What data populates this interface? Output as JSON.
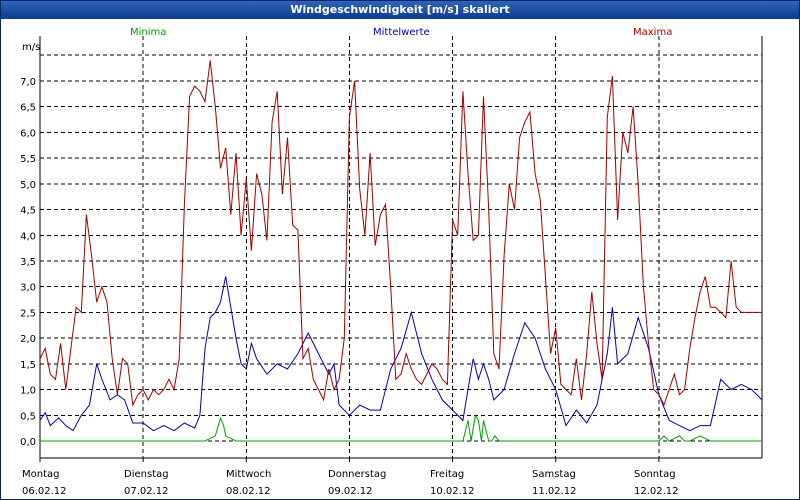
{
  "window": {
    "title": "Windgeschwindigkeit [m/s] skaliert"
  },
  "colors": {
    "Minima": "#00a000",
    "Mittelwerte": "#0000b0",
    "Maxima": "#a00000",
    "grid": "#000000",
    "axis": "#000000"
  },
  "chart_data": {
    "type": "line",
    "title": "Windgeschwindigkeit [m/s] skaliert",
    "ylabel": "m/s",
    "xlabel": "",
    "ylim": [
      -0.5,
      7.8
    ],
    "xlim": [
      0,
      7
    ],
    "grid": true,
    "legend_placement": "top",
    "yticks": [
      0.0,
      0.5,
      1.0,
      1.5,
      2.0,
      2.5,
      3.0,
      3.5,
      4.0,
      4.5,
      5.0,
      5.5,
      6.0,
      6.5,
      7.0
    ],
    "ytick_labels": [
      "0,0",
      "0,5",
      "1,0",
      "1,5",
      "2,0",
      "2,5",
      "3,0",
      "3,5",
      "4,0",
      "4,5",
      "5,0",
      "5,5",
      "6,0",
      "6,5",
      "7,0"
    ],
    "day_labels": [
      {
        "day": "Montag",
        "date": "06.02.12"
      },
      {
        "day": "Dienstag",
        "date": "07.02.12"
      },
      {
        "day": "Mittwoch",
        "date": "08.02.12"
      },
      {
        "day": "Donnerstag",
        "date": "09.02.12"
      },
      {
        "day": "Freitag",
        "date": "10.02.12"
      },
      {
        "day": "Samstag",
        "date": "11.02.12"
      },
      {
        "day": "Sonntag",
        "date": "12.02.12"
      }
    ],
    "series": [
      {
        "name": "Minima",
        "x": [
          0,
          1.6,
          1.7,
          1.75,
          1.78,
          1.8,
          1.9,
          2.0,
          4.1,
          4.15,
          4.18,
          4.22,
          4.25,
          4.28,
          4.3,
          4.35,
          4.38,
          4.41,
          4.45,
          4.5,
          6.0,
          6.05,
          6.1,
          6.2,
          6.25,
          6.3,
          6.4,
          6.5,
          7
        ],
        "values": [
          0,
          0,
          0.1,
          0.45,
          0.3,
          0.1,
          0,
          0,
          0,
          0.4,
          0,
          0.5,
          0.4,
          0,
          0.4,
          0,
          0,
          0.1,
          0,
          0,
          0,
          0.1,
          0,
          0.1,
          0,
          0,
          0.1,
          0,
          0
        ]
      },
      {
        "name": "Mittelwerte",
        "x": [
          0,
          0.05,
          0.1,
          0.18,
          0.25,
          0.32,
          0.4,
          0.48,
          0.55,
          0.6,
          0.68,
          0.75,
          0.82,
          0.9,
          1.0,
          1.1,
          1.2,
          1.3,
          1.4,
          1.5,
          1.55,
          1.6,
          1.65,
          1.7,
          1.75,
          1.8,
          1.85,
          1.9,
          1.95,
          2.0,
          2.05,
          2.1,
          2.2,
          2.3,
          2.4,
          2.5,
          2.6,
          2.7,
          2.8,
          2.85,
          2.9,
          3.0,
          3.1,
          3.2,
          3.3,
          3.4,
          3.5,
          3.6,
          3.7,
          3.8,
          3.9,
          4.0,
          4.1,
          4.15,
          4.2,
          4.25,
          4.3,
          4.35,
          4.4,
          4.5,
          4.6,
          4.7,
          4.8,
          4.9,
          5.0,
          5.1,
          5.2,
          5.3,
          5.4,
          5.5,
          5.55,
          5.6,
          5.7,
          5.8,
          5.9,
          6.0,
          6.1,
          6.2,
          6.3,
          6.4,
          6.5,
          6.6,
          6.7,
          6.8,
          6.9,
          7.0
        ],
        "values": [
          0.4,
          0.55,
          0.3,
          0.45,
          0.3,
          0.2,
          0.5,
          0.7,
          1.5,
          1.2,
          0.8,
          0.9,
          0.8,
          0.35,
          0.35,
          0.2,
          0.3,
          0.2,
          0.35,
          0.25,
          0.5,
          1.8,
          2.4,
          2.5,
          2.7,
          3.2,
          2.6,
          2.0,
          1.5,
          1.4,
          1.9,
          1.6,
          1.3,
          1.5,
          1.4,
          1.7,
          2.1,
          1.7,
          1.3,
          1.5,
          0.7,
          0.5,
          0.7,
          0.6,
          0.6,
          1.4,
          1.8,
          2.5,
          1.7,
          1.2,
          0.8,
          0.6,
          0.4,
          1.0,
          1.6,
          1.2,
          1.5,
          1.2,
          0.8,
          1.0,
          1.7,
          2.3,
          2.0,
          1.4,
          1.0,
          0.3,
          0.6,
          0.35,
          0.7,
          1.7,
          2.6,
          1.5,
          1.7,
          2.4,
          1.8,
          0.9,
          0.4,
          0.3,
          0.2,
          0.3,
          0.3,
          1.2,
          1.0,
          1.1,
          1.0,
          0.8
        ]
      },
      {
        "name": "Maxima",
        "x": [
          0,
          0.05,
          0.1,
          0.15,
          0.2,
          0.25,
          0.3,
          0.35,
          0.4,
          0.45,
          0.5,
          0.55,
          0.6,
          0.65,
          0.7,
          0.75,
          0.8,
          0.85,
          0.9,
          0.95,
          1.0,
          1.05,
          1.1,
          1.15,
          1.2,
          1.25,
          1.3,
          1.35,
          1.4,
          1.45,
          1.5,
          1.55,
          1.6,
          1.65,
          1.7,
          1.75,
          1.8,
          1.85,
          1.9,
          1.95,
          2.0,
          2.05,
          2.1,
          2.15,
          2.2,
          2.25,
          2.3,
          2.35,
          2.4,
          2.45,
          2.5,
          2.55,
          2.6,
          2.65,
          2.7,
          2.75,
          2.8,
          2.85,
          2.9,
          2.95,
          3.0,
          3.05,
          3.1,
          3.15,
          3.2,
          3.25,
          3.3,
          3.35,
          3.4,
          3.45,
          3.5,
          3.55,
          3.6,
          3.65,
          3.7,
          3.75,
          3.8,
          3.85,
          3.9,
          3.95,
          4.0,
          4.05,
          4.1,
          4.15,
          4.2,
          4.25,
          4.3,
          4.35,
          4.4,
          4.45,
          4.5,
          4.55,
          4.6,
          4.65,
          4.7,
          4.75,
          4.8,
          4.85,
          4.9,
          4.95,
          5.0,
          5.05,
          5.1,
          5.15,
          5.2,
          5.25,
          5.3,
          5.35,
          5.4,
          5.45,
          5.5,
          5.55,
          5.6,
          5.65,
          5.7,
          5.75,
          5.8,
          5.85,
          5.9,
          5.95,
          6.0,
          6.05,
          6.1,
          6.15,
          6.2,
          6.25,
          6.3,
          6.35,
          6.4,
          6.45,
          6.5,
          6.55,
          6.6,
          6.65,
          6.7,
          6.75,
          6.8,
          6.85,
          6.9,
          6.95,
          7.0
        ],
        "values": [
          1.6,
          1.8,
          1.3,
          1.2,
          1.9,
          1.0,
          1.8,
          2.6,
          2.5,
          4.4,
          3.6,
          2.7,
          3.0,
          2.7,
          1.6,
          0.9,
          1.6,
          1.5,
          0.7,
          0.9,
          1.0,
          0.8,
          1.0,
          0.9,
          1.0,
          1.2,
          1.0,
          1.6,
          4.6,
          6.7,
          6.9,
          6.8,
          6.6,
          7.4,
          6.5,
          5.3,
          5.7,
          4.4,
          5.6,
          4.0,
          5.1,
          3.7,
          5.2,
          4.8,
          3.9,
          6.2,
          6.8,
          4.8,
          5.9,
          4.2,
          4.1,
          1.6,
          1.8,
          1.2,
          1.0,
          0.8,
          1.4,
          1.0,
          1.2,
          2.0,
          6.3,
          7.0,
          4.9,
          4.0,
          5.6,
          3.8,
          4.4,
          4.6,
          3.0,
          1.2,
          1.3,
          1.7,
          1.4,
          1.2,
          1.1,
          1.3,
          1.5,
          1.4,
          1.2,
          1.1,
          4.3,
          4.0,
          6.8,
          5.2,
          3.9,
          4.0,
          6.7,
          4.5,
          1.7,
          1.4,
          3.6,
          5.0,
          4.5,
          5.9,
          6.2,
          6.4,
          5.2,
          4.7,
          3.2,
          1.7,
          2.2,
          1.1,
          1.0,
          0.9,
          1.6,
          0.8,
          1.7,
          2.9,
          1.9,
          1.2,
          6.3,
          7.1,
          4.3,
          6.0,
          5.6,
          6.5,
          5.0,
          3.0,
          1.9,
          1.0,
          0.9,
          0.7,
          1.0,
          1.3,
          0.9,
          1.0,
          1.8,
          2.4,
          2.9,
          3.2,
          2.6,
          2.6,
          2.5,
          2.4,
          3.5,
          2.6,
          2.5,
          2.5,
          2.5,
          2.5,
          2.5
        ]
      }
    ]
  }
}
